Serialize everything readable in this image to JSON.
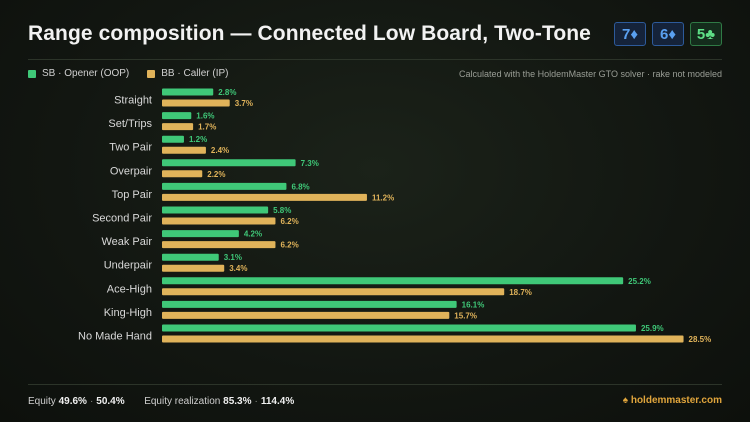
{
  "title": "Range composition — Connected Low Board, Two-Tone",
  "board": [
    {
      "rank": "7",
      "suit": "♦",
      "color": "#5aa0f0"
    },
    {
      "rank": "6",
      "suit": "♦",
      "color": "#5aa0f0"
    },
    {
      "rank": "5",
      "suit": "♣",
      "color": "#5ede86"
    }
  ],
  "legend": {
    "sb": "SB · Opener (OOP)",
    "bb": "BB · Caller (IP)"
  },
  "note": "Calculated with the HoldemMaster GTO solver · rake not modeled",
  "colors": {
    "sb": "#3fc878",
    "bb": "#e0b35a",
    "brand": "#e0a53c"
  },
  "chart_data": {
    "type": "bar",
    "orientation": "horizontal",
    "categories": [
      "Straight",
      "Set/Trips",
      "Two Pair",
      "Overpair",
      "Top Pair",
      "Second Pair",
      "Weak Pair",
      "Underpair",
      "Ace-High",
      "King-High",
      "No Made Hand"
    ],
    "series": [
      {
        "name": "SB · Opener (OOP)",
        "values": [
          2.8,
          1.6,
          1.2,
          7.3,
          6.8,
          5.8,
          4.2,
          3.1,
          25.2,
          16.1,
          25.9
        ]
      },
      {
        "name": "BB · Caller (IP)",
        "values": [
          3.7,
          1.7,
          2.4,
          2.2,
          11.2,
          6.2,
          6.2,
          3.4,
          18.7,
          15.7,
          28.5
        ]
      }
    ],
    "value_suffix": "%",
    "xlim": [
      0,
      30
    ],
    "grid": false,
    "legend_position": "top-left"
  },
  "footer": {
    "equity_label": "Equity",
    "equity_sb": "49.6%",
    "equity_bb": "50.4%",
    "sep": "·",
    "realization_label": "Equity realization",
    "realization_sb": "85.3%",
    "realization_bb": "114.4%"
  },
  "brand": {
    "icon": "spade-icon",
    "glyph": "♠",
    "text": "holdemmaster.com"
  }
}
